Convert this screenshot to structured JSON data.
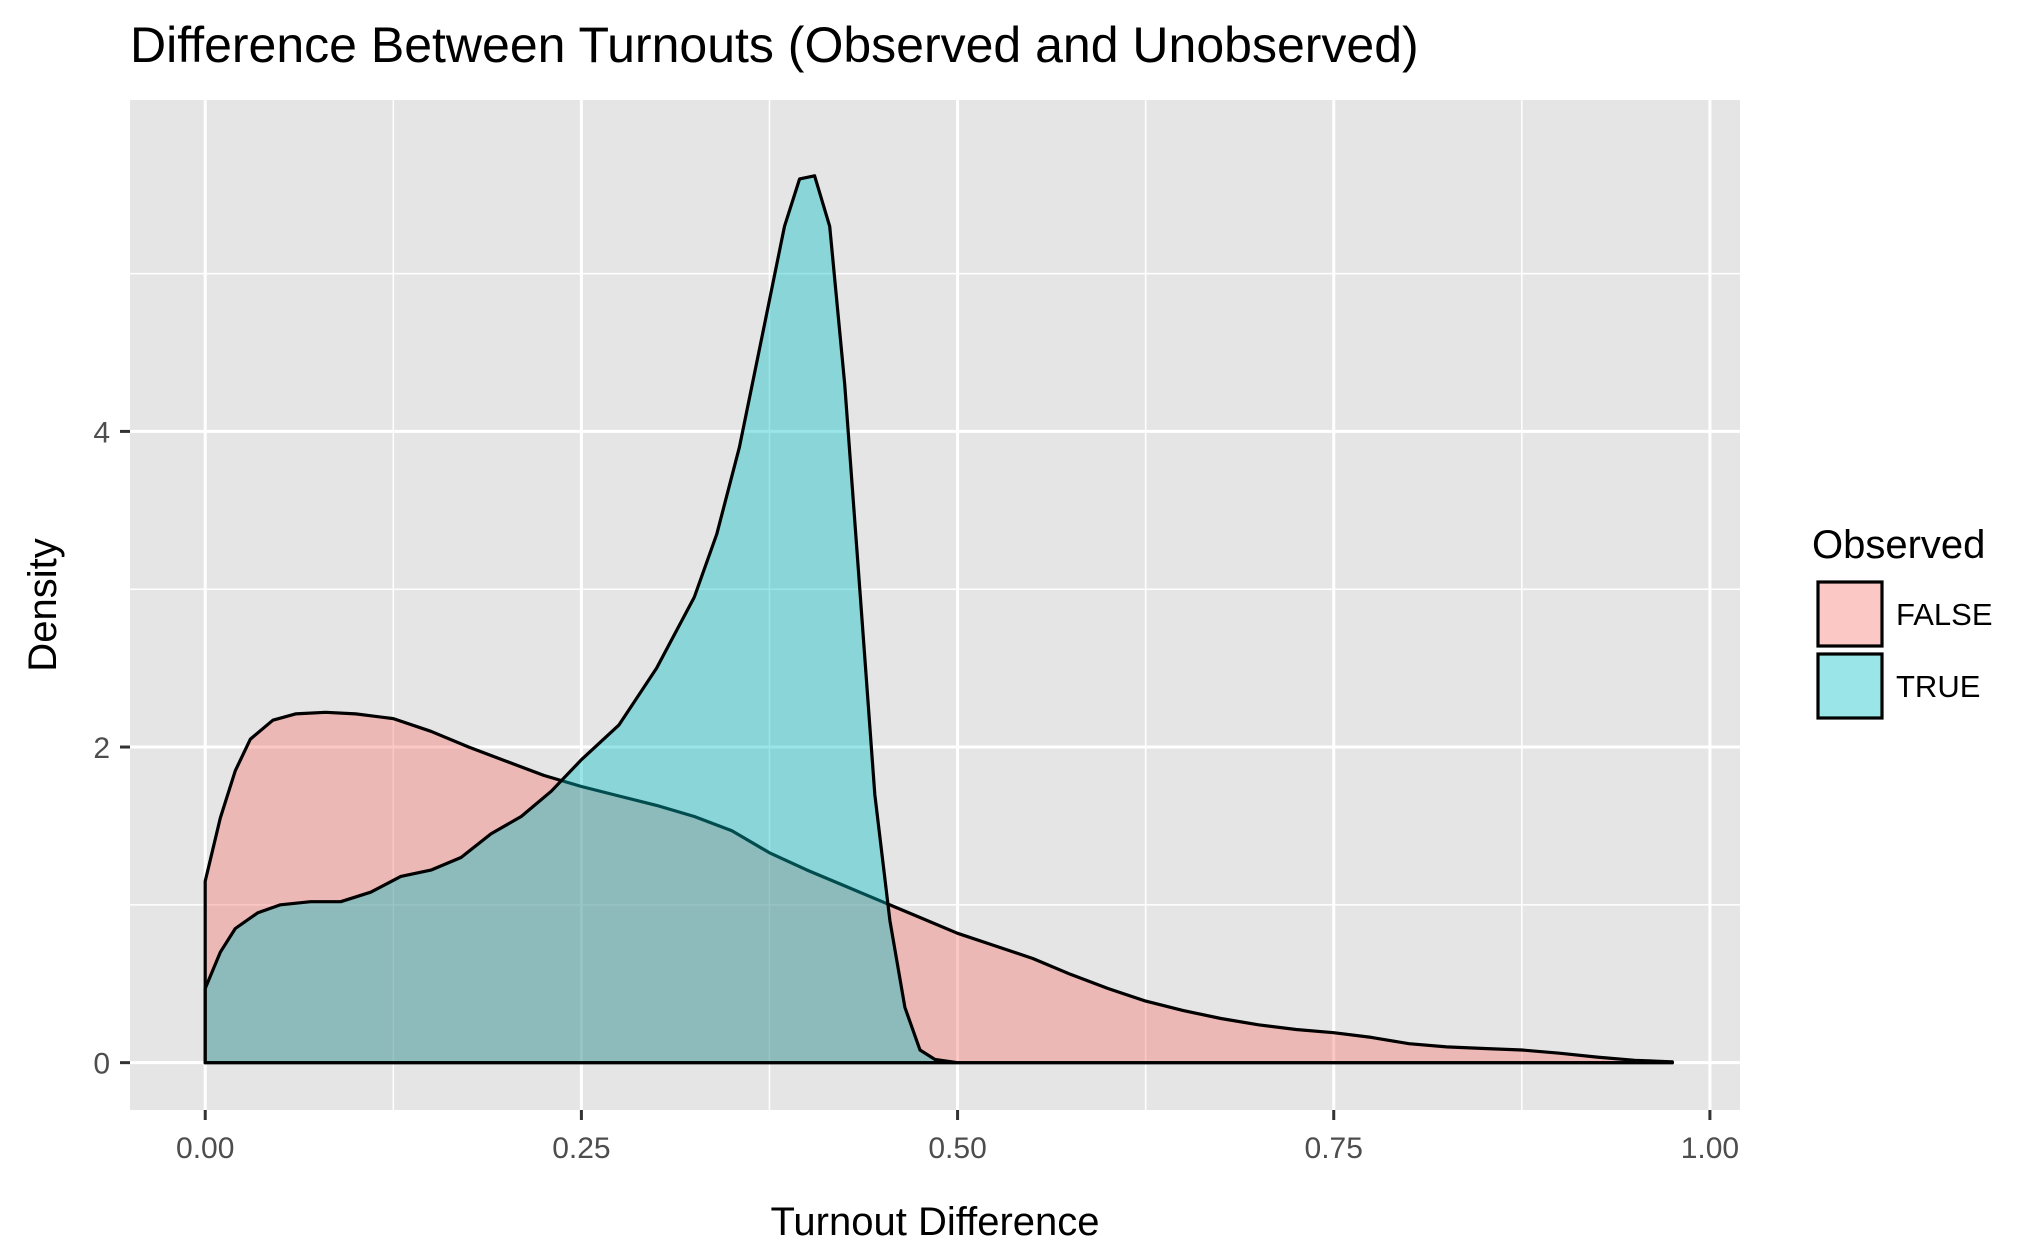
{
  "chart_data": {
    "type": "area",
    "title": "Difference Between Turnouts (Observed and Unobserved)",
    "xlabel": "Turnout Difference",
    "ylabel": "Density",
    "xlim": [
      -0.05,
      1.02
    ],
    "ylim": [
      -0.3,
      6.1
    ],
    "x_ticks": [
      {
        "value": 0,
        "label": "0.00"
      },
      {
        "value": 0.25,
        "label": "0.25"
      },
      {
        "value": 0.5,
        "label": "0.50"
      },
      {
        "value": 0.75,
        "label": "0.75"
      },
      {
        "value": 1.0,
        "label": "1.00"
      }
    ],
    "y_ticks": [
      {
        "value": 0,
        "label": "0"
      },
      {
        "value": 2,
        "label": "2"
      },
      {
        "value": 4,
        "label": "4"
      }
    ],
    "grid": true,
    "legend": {
      "title": "Observed",
      "position": "right"
    },
    "series": [
      {
        "name": "FALSE",
        "color": "#F8766D",
        "points": [
          [
            0,
            1.15
          ],
          [
            0.01,
            1.55
          ],
          [
            0.02,
            1.85
          ],
          [
            0.03,
            2.05
          ],
          [
            0.045,
            2.17
          ],
          [
            0.06,
            2.21
          ],
          [
            0.08,
            2.22
          ],
          [
            0.1,
            2.21
          ],
          [
            0.125,
            2.18
          ],
          [
            0.15,
            2.1
          ],
          [
            0.175,
            2.0
          ],
          [
            0.2,
            1.91
          ],
          [
            0.225,
            1.82
          ],
          [
            0.25,
            1.75
          ],
          [
            0.275,
            1.69
          ],
          [
            0.3,
            1.63
          ],
          [
            0.325,
            1.56
          ],
          [
            0.35,
            1.47
          ],
          [
            0.375,
            1.33
          ],
          [
            0.4,
            1.22
          ],
          [
            0.425,
            1.12
          ],
          [
            0.45,
            1.02
          ],
          [
            0.475,
            0.92
          ],
          [
            0.5,
            0.82
          ],
          [
            0.525,
            0.74
          ],
          [
            0.55,
            0.66
          ],
          [
            0.575,
            0.56
          ],
          [
            0.6,
            0.47
          ],
          [
            0.625,
            0.39
          ],
          [
            0.65,
            0.33
          ],
          [
            0.675,
            0.28
          ],
          [
            0.7,
            0.24
          ],
          [
            0.725,
            0.21
          ],
          [
            0.75,
            0.19
          ],
          [
            0.775,
            0.16
          ],
          [
            0.8,
            0.12
          ],
          [
            0.825,
            0.1
          ],
          [
            0.85,
            0.09
          ],
          [
            0.875,
            0.08
          ],
          [
            0.9,
            0.06
          ],
          [
            0.925,
            0.035
          ],
          [
            0.95,
            0.015
          ],
          [
            0.975,
            0.005
          ]
        ]
      },
      {
        "name": "TRUE",
        "color": "#00BFC4",
        "points": [
          [
            0,
            0.47
          ],
          [
            0.01,
            0.7
          ],
          [
            0.02,
            0.85
          ],
          [
            0.035,
            0.95
          ],
          [
            0.05,
            1.0
          ],
          [
            0.07,
            1.02
          ],
          [
            0.09,
            1.02
          ],
          [
            0.11,
            1.08
          ],
          [
            0.13,
            1.18
          ],
          [
            0.15,
            1.22
          ],
          [
            0.17,
            1.3
          ],
          [
            0.19,
            1.45
          ],
          [
            0.21,
            1.56
          ],
          [
            0.23,
            1.72
          ],
          [
            0.25,
            1.92
          ],
          [
            0.275,
            2.14
          ],
          [
            0.3,
            2.5
          ],
          [
            0.325,
            2.95
          ],
          [
            0.34,
            3.35
          ],
          [
            0.355,
            3.9
          ],
          [
            0.37,
            4.6
          ],
          [
            0.385,
            5.3
          ],
          [
            0.395,
            5.6
          ],
          [
            0.405,
            5.62
          ],
          [
            0.415,
            5.3
          ],
          [
            0.425,
            4.3
          ],
          [
            0.435,
            3.0
          ],
          [
            0.445,
            1.7
          ],
          [
            0.455,
            0.9
          ],
          [
            0.465,
            0.35
          ],
          [
            0.475,
            0.08
          ],
          [
            0.485,
            0.02
          ],
          [
            0.5,
            0.0
          ],
          [
            0.975,
            0.0
          ]
        ]
      }
    ]
  }
}
